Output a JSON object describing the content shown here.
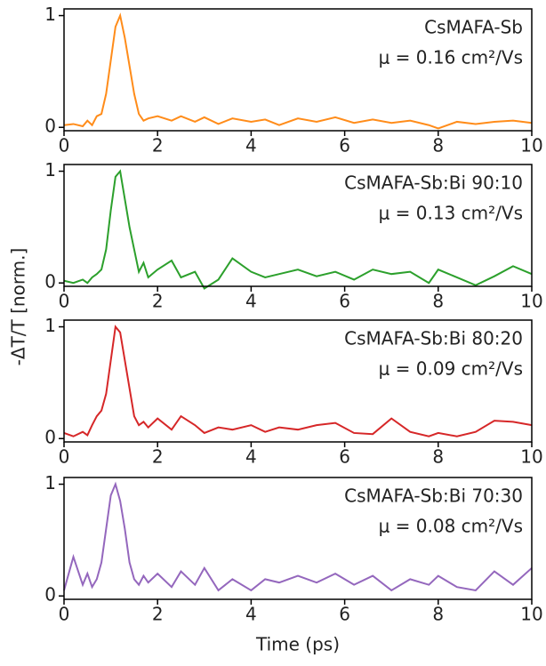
{
  "ylabel": "-ΔT/T [norm.]",
  "xlabel": "Time (ps)",
  "chart_data": [
    {
      "type": "line",
      "annotations": [
        "CsMAFA-Sb",
        "μ = 0.16 cm²/Vs"
      ],
      "xlim": [
        0,
        10
      ],
      "ylim": [
        -0.03,
        1.06
      ],
      "xticks": [
        0,
        2,
        4,
        6,
        8,
        10
      ],
      "yticks": [
        0,
        1
      ],
      "series": [
        {
          "color": "#ff8c1a",
          "x": [
            0,
            0.2,
            0.4,
            0.5,
            0.6,
            0.7,
            0.8,
            0.9,
            1.0,
            1.1,
            1.2,
            1.3,
            1.4,
            1.5,
            1.6,
            1.7,
            1.8,
            2.0,
            2.3,
            2.5,
            2.8,
            3.0,
            3.3,
            3.6,
            4.0,
            4.3,
            4.6,
            5.0,
            5.4,
            5.8,
            6.2,
            6.6,
            7.0,
            7.4,
            7.8,
            8.0,
            8.4,
            8.8,
            9.2,
            9.6,
            10
          ],
          "values": [
            0.02,
            0.03,
            0.01,
            0.06,
            0.02,
            0.1,
            0.12,
            0.3,
            0.6,
            0.9,
            1.0,
            0.8,
            0.55,
            0.3,
            0.12,
            0.06,
            0.08,
            0.1,
            0.06,
            0.1,
            0.05,
            0.09,
            0.03,
            0.08,
            0.05,
            0.07,
            0.02,
            0.08,
            0.05,
            0.09,
            0.04,
            0.07,
            0.04,
            0.06,
            0.02,
            -0.01,
            0.05,
            0.03,
            0.05,
            0.06,
            0.04
          ]
        }
      ]
    },
    {
      "type": "line",
      "annotations": [
        "CsMAFA-Sb:Bi 90:10",
        "μ = 0.13 cm²/Vs"
      ],
      "xlim": [
        0,
        10
      ],
      "ylim": [
        -0.03,
        1.06
      ],
      "xticks": [
        0,
        2,
        4,
        6,
        8,
        10
      ],
      "yticks": [
        0,
        1
      ],
      "series": [
        {
          "color": "#2ca02c",
          "x": [
            0,
            0.2,
            0.4,
            0.5,
            0.6,
            0.7,
            0.8,
            0.9,
            1.0,
            1.1,
            1.2,
            1.3,
            1.4,
            1.5,
            1.6,
            1.7,
            1.8,
            2.0,
            2.3,
            2.5,
            2.8,
            3.0,
            3.3,
            3.6,
            4.0,
            4.3,
            4.6,
            5.0,
            5.4,
            5.8,
            6.2,
            6.6,
            7.0,
            7.4,
            7.8,
            8.0,
            8.4,
            8.8,
            9.2,
            9.6,
            10
          ],
          "values": [
            0.02,
            0.0,
            0.03,
            0.0,
            0.05,
            0.08,
            0.12,
            0.3,
            0.65,
            0.95,
            1.0,
            0.75,
            0.5,
            0.3,
            0.1,
            0.18,
            0.05,
            0.12,
            0.2,
            0.05,
            0.1,
            -0.05,
            0.03,
            0.22,
            0.1,
            0.05,
            0.08,
            0.12,
            0.06,
            0.1,
            0.03,
            0.12,
            0.08,
            0.1,
            0.0,
            0.12,
            0.05,
            -0.02,
            0.06,
            0.15,
            0.08
          ]
        }
      ]
    },
    {
      "type": "line",
      "annotations": [
        "CsMAFA-Sb:Bi 80:20",
        "μ = 0.09 cm²/Vs"
      ],
      "xlim": [
        0,
        10
      ],
      "ylim": [
        -0.03,
        1.06
      ],
      "xticks": [
        0,
        2,
        4,
        6,
        8,
        10
      ],
      "yticks": [
        0,
        1
      ],
      "series": [
        {
          "color": "#d62728",
          "x": [
            0,
            0.2,
            0.4,
            0.5,
            0.6,
            0.7,
            0.8,
            0.9,
            1.0,
            1.1,
            1.2,
            1.3,
            1.4,
            1.5,
            1.6,
            1.7,
            1.8,
            2.0,
            2.3,
            2.5,
            2.8,
            3.0,
            3.3,
            3.6,
            4.0,
            4.3,
            4.6,
            5.0,
            5.4,
            5.8,
            6.2,
            6.6,
            7.0,
            7.4,
            7.8,
            8.0,
            8.4,
            8.8,
            9.2,
            9.6,
            10
          ],
          "values": [
            0.05,
            0.02,
            0.06,
            0.03,
            0.12,
            0.2,
            0.25,
            0.4,
            0.7,
            1.0,
            0.95,
            0.7,
            0.45,
            0.2,
            0.12,
            0.15,
            0.1,
            0.18,
            0.08,
            0.2,
            0.12,
            0.05,
            0.1,
            0.08,
            0.12,
            0.06,
            0.1,
            0.08,
            0.12,
            0.14,
            0.05,
            0.04,
            0.18,
            0.06,
            0.02,
            0.05,
            0.02,
            0.06,
            0.16,
            0.15,
            0.12
          ]
        }
      ]
    },
    {
      "type": "line",
      "annotations": [
        "CsMAFA-Sb:Bi 70:30",
        "μ = 0.08 cm²/Vs"
      ],
      "xlim": [
        0,
        10
      ],
      "ylim": [
        -0.03,
        1.06
      ],
      "xticks": [
        0,
        2,
        4,
        6,
        8,
        10
      ],
      "yticks": [
        0,
        1
      ],
      "series": [
        {
          "color": "#9467bd",
          "x": [
            0,
            0.2,
            0.4,
            0.5,
            0.6,
            0.7,
            0.8,
            0.9,
            1.0,
            1.1,
            1.2,
            1.3,
            1.4,
            1.5,
            1.6,
            1.7,
            1.8,
            2.0,
            2.3,
            2.5,
            2.8,
            3.0,
            3.3,
            3.6,
            4.0,
            4.3,
            4.6,
            5.0,
            5.4,
            5.8,
            6.2,
            6.6,
            7.0,
            7.4,
            7.8,
            8.0,
            8.4,
            8.8,
            9.2,
            9.6,
            10
          ],
          "values": [
            0.05,
            0.35,
            0.1,
            0.2,
            0.08,
            0.15,
            0.3,
            0.6,
            0.9,
            1.0,
            0.85,
            0.6,
            0.3,
            0.15,
            0.1,
            0.18,
            0.12,
            0.2,
            0.08,
            0.22,
            0.1,
            0.25,
            0.05,
            0.15,
            0.05,
            0.15,
            0.12,
            0.18,
            0.12,
            0.2,
            0.1,
            0.18,
            0.05,
            0.15,
            0.1,
            0.18,
            0.08,
            0.05,
            0.22,
            0.1,
            0.25
          ]
        }
      ]
    }
  ]
}
